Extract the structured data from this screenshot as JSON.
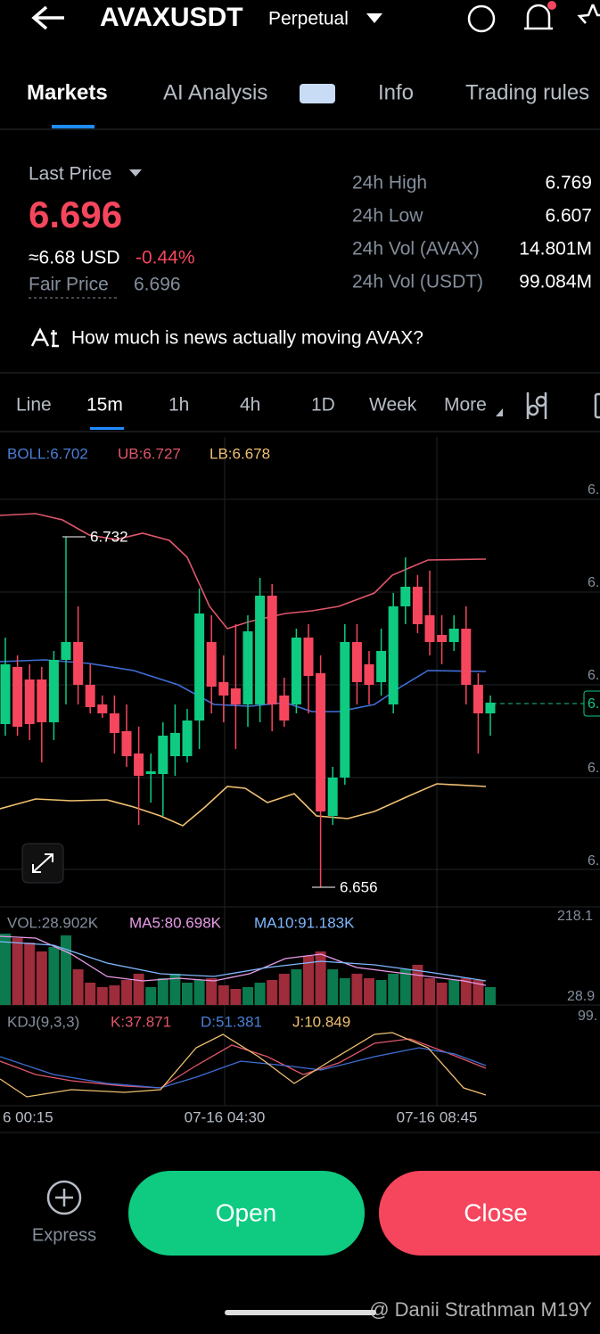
{
  "header": {
    "title": "AVAXUSDT",
    "subtitle": "Perpetual"
  },
  "tabs": [
    "Markets",
    "AI Analysis",
    "Info",
    "Trading rules"
  ],
  "price": {
    "label": "Last Price",
    "value": "6.696",
    "usd": "≈6.68 USD",
    "change": "-0.44%",
    "fair_label": "Fair Price",
    "fair_value": "6.696"
  },
  "stats": [
    [
      "24h High",
      "6.769"
    ],
    [
      "24h Low",
      "6.607"
    ],
    [
      "24h Vol (AVAX)",
      "14.801M"
    ],
    [
      "24h Vol (USDT)",
      "99.084M"
    ]
  ],
  "news": "How much is news actually moving AVAX?",
  "intervals": [
    "Line",
    "15m",
    "1h",
    "4h",
    "1D",
    "Week",
    "More"
  ],
  "boll": [
    "BOLL:6.702",
    "UB:6.727",
    "LB:6.678"
  ],
  "chart_notes": {
    "high": "6.732",
    "low": "6.656"
  },
  "price_axis": [
    "6.",
    "6.",
    "6.",
    "6.",
    "6."
  ],
  "current_tag": "6.",
  "vol": [
    "VOL:28.902K",
    "MA5:80.698K",
    "MA10:91.183K"
  ],
  "vol_axis": [
    "218.1",
    "28.9"
  ],
  "kdj": [
    "KDJ(9,3,3)",
    "K:37.871",
    "D:51.381",
    "J:10.849"
  ],
  "kdj_axis": "99.",
  "times": [
    "6 00:15",
    "07-16 04:30",
    "07-16 08:45"
  ],
  "buttons": {
    "express": "Express",
    "open": "Open",
    "close": "Close"
  },
  "watermark": "@ Danii Strathman M19Y"
}
